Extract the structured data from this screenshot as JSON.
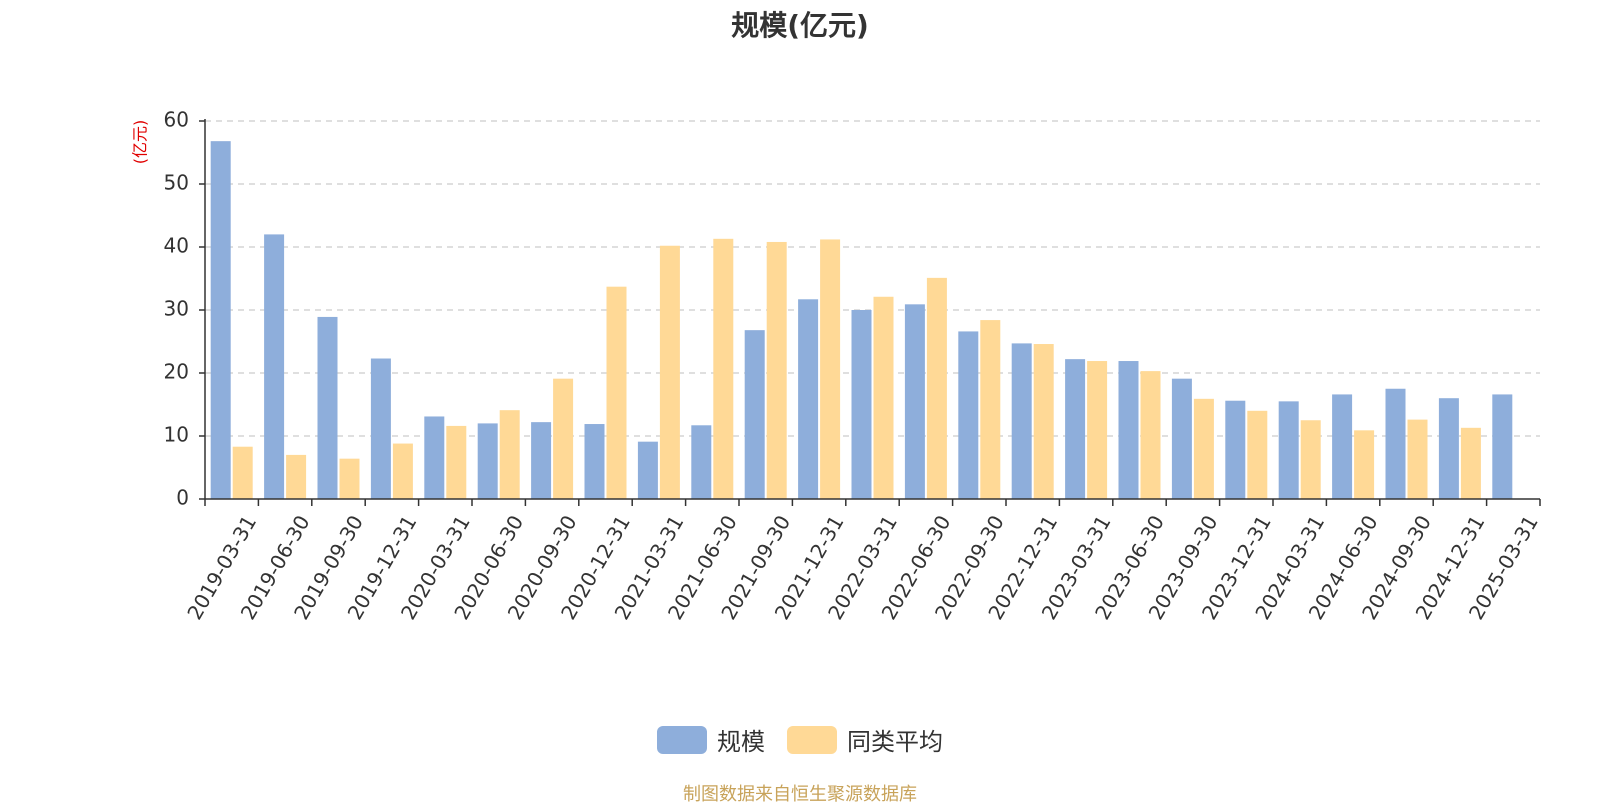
{
  "chart_data": {
    "type": "bar",
    "title": "规模(亿元)",
    "ylabel": "(亿元)",
    "xlabel": "",
    "ylim": [
      0,
      60
    ],
    "yticks": [
      0,
      10,
      20,
      30,
      40,
      50,
      60
    ],
    "grid": true,
    "legend_position": "bottom-center",
    "categories": [
      "2019-03-31",
      "2019-06-30",
      "2019-09-30",
      "2019-12-31",
      "2020-03-31",
      "2020-06-30",
      "2020-09-30",
      "2020-12-31",
      "2021-03-31",
      "2021-06-30",
      "2021-09-30",
      "2021-12-31",
      "2022-03-31",
      "2022-06-30",
      "2022-09-30",
      "2022-12-31",
      "2023-03-31",
      "2023-06-30",
      "2023-09-30",
      "2023-12-31",
      "2024-03-31",
      "2024-06-30",
      "2024-09-30",
      "2024-12-31",
      "2025-03-31"
    ],
    "series": [
      {
        "name": "规模",
        "color": "#8eaedb",
        "values": [
          56.8,
          42.0,
          28.9,
          22.3,
          13.1,
          12.0,
          12.2,
          11.9,
          9.1,
          11.7,
          26.8,
          31.7,
          30.0,
          30.9,
          26.6,
          24.7,
          22.2,
          21.9,
          19.1,
          15.6,
          15.5,
          16.6,
          17.5,
          16.0,
          16.6
        ]
      },
      {
        "name": "同类平均",
        "color": "#ffd996",
        "values": [
          8.3,
          7.0,
          6.4,
          8.8,
          11.6,
          14.1,
          19.1,
          33.7,
          40.2,
          41.3,
          40.8,
          41.2,
          32.1,
          35.1,
          28.4,
          24.6,
          21.9,
          20.3,
          15.9,
          14.0,
          12.5,
          10.9,
          12.6,
          11.3,
          null
        ]
      }
    ]
  },
  "legend": [
    {
      "label": "规模",
      "color": "#8eaedb"
    },
    {
      "label": "同类平均",
      "color": "#ffd996"
    }
  ],
  "footer": {
    "source": "制图数据来自恒生聚源数据库"
  }
}
